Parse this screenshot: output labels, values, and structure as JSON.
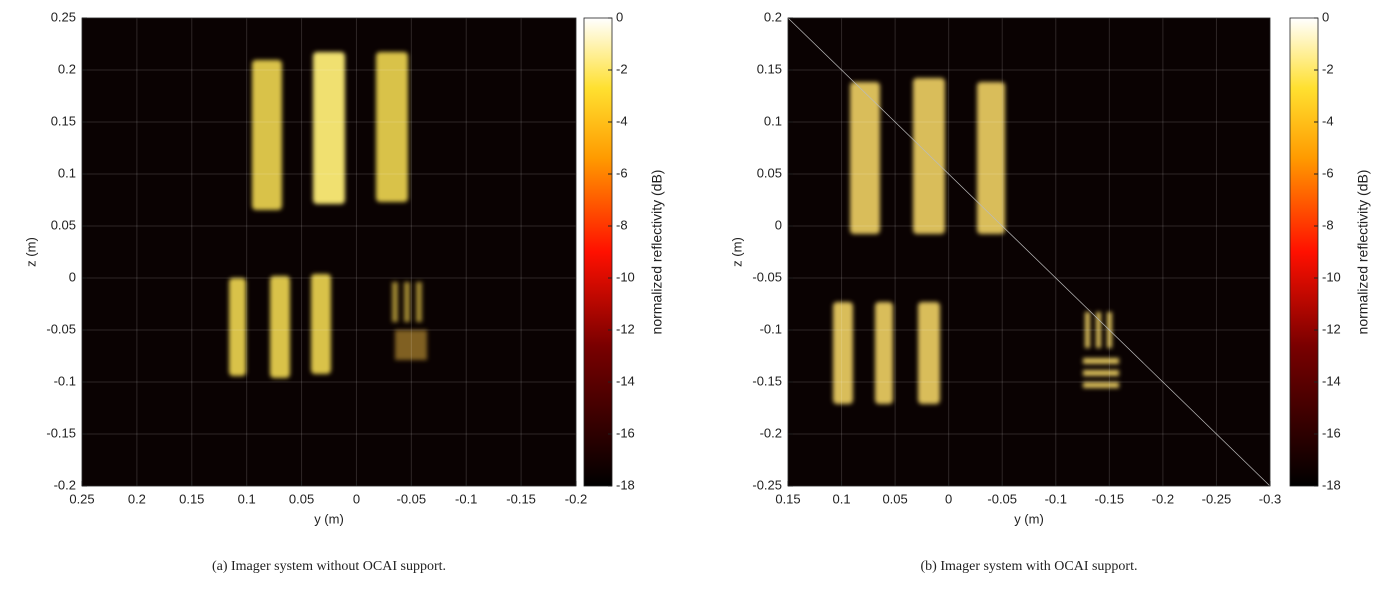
{
  "chart_data": [
    {
      "type": "image",
      "xlabel": "y (m)",
      "ylabel": "z (m)",
      "xlim": [
        0.25,
        -0.2
      ],
      "xticks": [
        0.25,
        0.2,
        0.15,
        0.1,
        0.05,
        0,
        -0.05,
        -0.1,
        -0.15,
        -0.2
      ],
      "ylim": [
        -0.2,
        0.25
      ],
      "yticks": [
        -0.2,
        -0.15,
        -0.1,
        -0.05,
        0,
        0.05,
        0.1,
        0.15,
        0.2,
        0.25
      ],
      "grid": true,
      "colorbar": {
        "label": "normalized reflectivity (dB)",
        "lim": [
          -18,
          0
        ],
        "ticks": [
          0,
          -2,
          -4,
          -6,
          -8,
          -10,
          -12,
          -14,
          -16,
          -18
        ]
      },
      "caption": "(a) Imager system without OCAI support."
    },
    {
      "type": "image",
      "xlabel": "y (m)",
      "ylabel": "z (m)",
      "xlim": [
        0.15,
        -0.3
      ],
      "xticks": [
        0.15,
        0.1,
        0.05,
        0,
        -0.05,
        -0.1,
        -0.15,
        -0.2,
        -0.25,
        -0.3
      ],
      "ylim": [
        -0.25,
        0.2
      ],
      "yticks": [
        -0.25,
        -0.2,
        -0.15,
        -0.1,
        -0.05,
        0,
        0.05,
        0.1,
        0.15,
        0.2
      ],
      "grid": true,
      "colorbar": {
        "label": "normalized reflectivity (dB)",
        "lim": [
          -18,
          0
        ],
        "ticks": [
          0,
          -2,
          -4,
          -6,
          -8,
          -10,
          -12,
          -14,
          -16,
          -18
        ]
      },
      "caption": "(b) Imager system with OCAI support."
    }
  ]
}
